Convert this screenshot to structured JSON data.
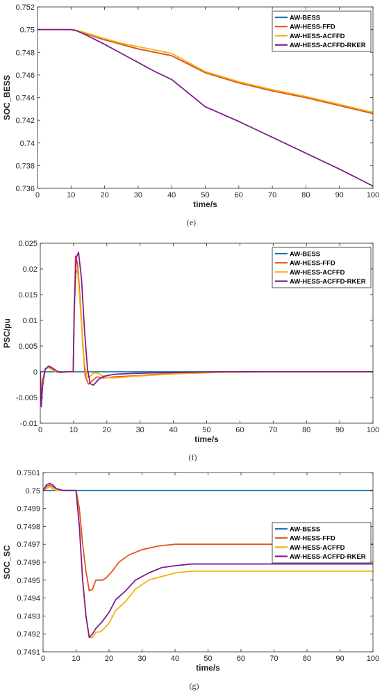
{
  "colors": {
    "AW-BESS": "#1f77b4",
    "AW-HESS-FFD": "#e8511f",
    "AW-HESS-ACFFD": "#f5b20c",
    "AW-HESS-ACFFD-RKER": "#7e1e8c",
    "axis": "#262626"
  },
  "chart_data": [
    {
      "id": "e",
      "type": "line",
      "caption": "(e)",
      "xlabel": "time/s",
      "ylabel": "SOC_BESS",
      "xlim": [
        0,
        100
      ],
      "ylim": [
        0.736,
        0.752
      ],
      "xticks": [
        0,
        10,
        20,
        30,
        40,
        50,
        60,
        70,
        80,
        90,
        100
      ],
      "yticks": [
        0.736,
        0.738,
        0.74,
        0.742,
        0.744,
        0.746,
        0.748,
        0.75,
        0.752
      ],
      "ytick_labels": [
        "0.736",
        "0.738",
        "0.74",
        "0.742",
        "0.744",
        "0.746",
        "0.748",
        "0.75",
        "0.752"
      ],
      "legend_position": "top-right",
      "series": [
        {
          "name": "AW-BESS",
          "x": [
            0,
            10,
            11,
            12,
            14,
            16,
            18,
            20,
            25,
            30,
            35,
            40,
            50,
            60,
            70,
            80,
            90,
            100
          ],
          "y": [
            0.75,
            0.75,
            0.74995,
            0.7499,
            0.7497,
            0.7495,
            0.74928,
            0.7491,
            0.7487,
            0.7483,
            0.748,
            0.7477,
            0.7462,
            0.7453,
            0.7446,
            0.744,
            0.7433,
            0.7426
          ]
        },
        {
          "name": "AW-HESS-FFD",
          "x": [
            0,
            10,
            11,
            12,
            14,
            16,
            18,
            20,
            25,
            30,
            35,
            40,
            50,
            60,
            70,
            80,
            90,
            100
          ],
          "y": [
            0.75,
            0.75,
            0.74995,
            0.74988,
            0.74968,
            0.74948,
            0.74928,
            0.7491,
            0.7487,
            0.7483,
            0.748,
            0.7477,
            0.7462,
            0.7453,
            0.7446,
            0.744,
            0.7433,
            0.7426
          ]
        },
        {
          "name": "AW-HESS-ACFFD",
          "x": [
            0,
            10,
            11,
            12,
            14,
            16,
            18,
            20,
            25,
            30,
            35,
            40,
            50,
            60,
            70,
            80,
            90,
            100
          ],
          "y": [
            0.75,
            0.75,
            0.74997,
            0.74992,
            0.74975,
            0.74957,
            0.74938,
            0.7492,
            0.7488,
            0.7485,
            0.7482,
            0.7479,
            0.7463,
            0.7454,
            0.7447,
            0.7441,
            0.7434,
            0.7427
          ]
        },
        {
          "name": "AW-HESS-ACFFD-RKER",
          "x": [
            0,
            10,
            11,
            12,
            14,
            16,
            18,
            20,
            25,
            30,
            35,
            40,
            50,
            60,
            70,
            80,
            90,
            100
          ],
          "y": [
            0.75,
            0.75,
            0.74995,
            0.74985,
            0.7496,
            0.7493,
            0.749,
            0.7487,
            0.7479,
            0.7471,
            0.7463,
            0.7456,
            0.7432,
            0.7419,
            0.7405,
            0.7391,
            0.7377,
            0.7362
          ]
        }
      ]
    },
    {
      "id": "f",
      "type": "line",
      "caption": "(f)",
      "xlabel": "time/s",
      "ylabel": "PSC/pu",
      "xlim": [
        0,
        100
      ],
      "ylim": [
        -0.01,
        0.025
      ],
      "xticks": [
        0,
        10,
        20,
        30,
        40,
        50,
        60,
        70,
        80,
        90,
        100
      ],
      "yticks": [
        -0.01,
        -0.005,
        0,
        0.005,
        0.01,
        0.015,
        0.02,
        0.025
      ],
      "ytick_labels": [
        "-0.01",
        "-0.005",
        "0",
        "0.005",
        "0.01",
        "0.015",
        "0.02",
        "0.025"
      ],
      "legend_position": "top-right",
      "series": [
        {
          "name": "AW-BESS",
          "x": [
            0,
            100
          ],
          "y": [
            0,
            0
          ]
        },
        {
          "name": "AW-HESS-FFD",
          "x": [
            0,
            0.3,
            0.8,
            1.5,
            2.5,
            3.5,
            5,
            6.5,
            8,
            9.9,
            10.2,
            10.6,
            11.2,
            12,
            12.8,
            13.5,
            14.5,
            15.5,
            17,
            19,
            22,
            28,
            35,
            45,
            55,
            70,
            100
          ],
          "y": [
            0,
            -0.004,
            -0.0025,
            0.0006,
            0.0009,
            0.0005,
            -0.0001,
            -0.0001,
            0,
            0,
            0.012,
            0.0225,
            0.021,
            0.014,
            0.005,
            -0.0008,
            -0.0024,
            -0.0018,
            -0.001,
            -0.0012,
            -0.001,
            -0.0008,
            -0.0005,
            -0.0002,
            -5e-05,
            0,
            0
          ]
        },
        {
          "name": "AW-HESS-ACFFD",
          "x": [
            0,
            0.3,
            0.8,
            1.5,
            2.5,
            3.5,
            5,
            6.5,
            8,
            9.9,
            10.2,
            10.6,
            11.3,
            12.2,
            13.2,
            14,
            15,
            16,
            17.5,
            19.5,
            22,
            28,
            35,
            45,
            55,
            70,
            100
          ],
          "y": [
            0,
            -0.003,
            -0.002,
            0.0005,
            0.0008,
            0.0004,
            -0.0001,
            -0.0001,
            0,
            0,
            0.011,
            0.02,
            0.019,
            0.011,
            0.002,
            -0.0012,
            -0.0009,
            -0.0002,
            -0.0003,
            -0.0011,
            -0.0012,
            -0.0009,
            -0.0006,
            -0.0003,
            -0.0001,
            0,
            0
          ]
        },
        {
          "name": "AW-HESS-ACFFD-RKER",
          "x": [
            0,
            0.3,
            0.8,
            1.5,
            2.5,
            3.5,
            5,
            6.5,
            8,
            9.9,
            10.2,
            10.8,
            11.5,
            12.4,
            13.3,
            14.2,
            15,
            16,
            17.5,
            19,
            22,
            28,
            35,
            45,
            55,
            70,
            100
          ],
          "y": [
            0,
            -0.0068,
            -0.0015,
            0.0005,
            0.0011,
            0.0008,
            0.0001,
            -0.0001,
            0,
            0,
            0.012,
            0.0222,
            0.0232,
            0.018,
            0.008,
            0.0005,
            -0.0023,
            -0.0026,
            -0.0015,
            -0.0009,
            -0.0005,
            -0.0003,
            -0.0002,
            -0.0001,
            0,
            0,
            0
          ]
        }
      ]
    },
    {
      "id": "g",
      "type": "line",
      "caption": "(g)",
      "xlabel": "time/s",
      "ylabel": "SOC_SC",
      "xlim": [
        0,
        100
      ],
      "ylim": [
        0.7491,
        0.7501
      ],
      "xticks": [
        0,
        10,
        20,
        30,
        40,
        50,
        60,
        70,
        80,
        90,
        100
      ],
      "yticks": [
        0.7491,
        0.7492,
        0.7493,
        0.7494,
        0.7495,
        0.7496,
        0.7497,
        0.7498,
        0.7499,
        0.75,
        0.7501
      ],
      "ytick_labels": [
        "0.7491",
        "0.7492",
        "0.7493",
        "0.7494",
        "0.7495",
        "0.7496",
        "0.7497",
        "0.7498",
        "0.7499",
        "0.75",
        "0.7501"
      ],
      "legend_position": "right",
      "series": [
        {
          "name": "AW-BESS",
          "x": [
            0,
            100
          ],
          "y": [
            0.75,
            0.75
          ]
        },
        {
          "name": "AW-HESS-FFD",
          "x": [
            0,
            1,
            2,
            3,
            4,
            6,
            8,
            10,
            11,
            12,
            13,
            14,
            15,
            16,
            17,
            18,
            19,
            21,
            23,
            26,
            30,
            35,
            40,
            45,
            50,
            60,
            70,
            100
          ],
          "y": [
            0.75,
            0.75002,
            0.75003,
            0.75002,
            0.75001,
            0.75,
            0.75,
            0.75,
            0.7499,
            0.7497,
            0.74955,
            0.74944,
            0.74945,
            0.7495,
            0.7495,
            0.7495,
            0.74951,
            0.74955,
            0.7496,
            0.74964,
            0.74967,
            0.74969,
            0.7497,
            0.7497,
            0.7497,
            0.7497,
            0.7497,
            0.7497
          ]
        },
        {
          "name": "AW-HESS-ACFFD",
          "x": [
            0,
            1,
            2,
            3,
            4,
            6,
            8,
            10,
            11,
            12,
            13,
            14,
            15,
            16,
            17,
            18,
            20,
            22,
            25,
            28,
            32,
            36,
            40,
            45,
            50,
            60,
            70,
            100
          ],
          "y": [
            0.75,
            0.75001,
            0.75002,
            0.75001,
            0.75,
            0.75,
            0.75,
            0.75,
            0.7498,
            0.7495,
            0.7493,
            0.74918,
            0.74918,
            0.74921,
            0.74921,
            0.74922,
            0.74926,
            0.74933,
            0.74938,
            0.74945,
            0.7495,
            0.74952,
            0.74954,
            0.74955,
            0.74955,
            0.74955,
            0.74955,
            0.74955
          ]
        },
        {
          "name": "AW-HESS-ACFFD-RKER",
          "x": [
            0,
            1,
            2,
            3,
            4,
            6,
            8,
            10,
            11,
            12,
            13,
            14,
            15,
            16,
            17,
            18,
            20,
            22,
            25,
            28,
            32,
            36,
            40,
            45,
            50,
            60,
            70,
            100
          ],
          "y": [
            0.75,
            0.75003,
            0.75004,
            0.75003,
            0.75001,
            0.75,
            0.75,
            0.75,
            0.7498,
            0.7495,
            0.7493,
            0.74918,
            0.7492,
            0.74923,
            0.74925,
            0.74927,
            0.74932,
            0.74939,
            0.74944,
            0.7495,
            0.74954,
            0.74957,
            0.74958,
            0.74959,
            0.74959,
            0.74959,
            0.74959,
            0.74959
          ]
        }
      ]
    }
  ]
}
